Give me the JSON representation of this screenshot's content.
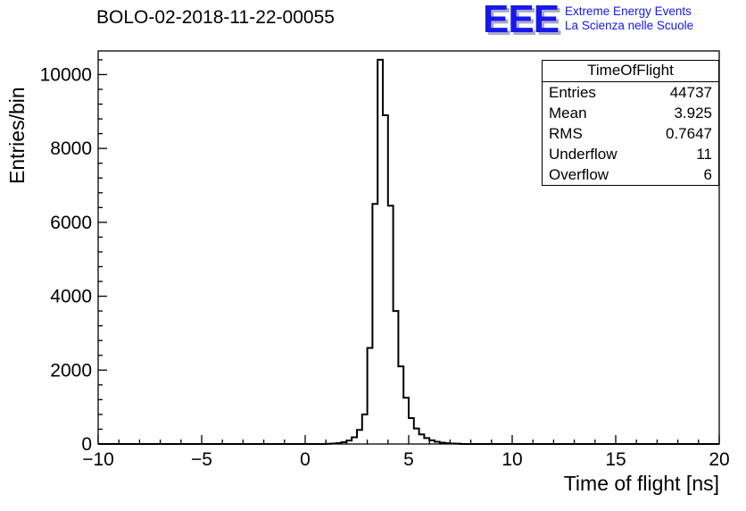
{
  "header": {
    "title": "BOLO-02-2018-11-22-00055"
  },
  "logo": {
    "text": "EEE",
    "line1": "Extreme Energy Events",
    "line2": "La Scienza nelle Scuole",
    "color": "#1717ee"
  },
  "stats": {
    "title": "TimeOfFlight",
    "rows": [
      {
        "label": "Entries",
        "value": "44737"
      },
      {
        "label": "Mean",
        "value": "3.925"
      },
      {
        "label": "RMS",
        "value": "0.7647"
      },
      {
        "label": "Underflow",
        "value": "11"
      },
      {
        "label": "Overflow",
        "value": "6"
      }
    ]
  },
  "chart_data": {
    "type": "bar",
    "style": "step-histogram",
    "title": "BOLO-02-2018-11-22-00055",
    "xlabel": "Time of flight [ns]",
    "ylabel": "Entries/bin",
    "xlim": [
      -10,
      20
    ],
    "ylim": [
      0,
      10640
    ],
    "x_ticks": [
      -10,
      -5,
      0,
      5,
      10,
      15,
      20
    ],
    "y_ticks": [
      0,
      2000,
      4000,
      6000,
      8000,
      10000
    ],
    "x_minor_step": 1,
    "y_minor_step": 400,
    "bin_start": 1.0,
    "bin_width": 0.25,
    "bins": [
      6,
      12,
      25,
      50,
      95,
      180,
      380,
      800,
      2600,
      6500,
      10400,
      8900,
      6450,
      3600,
      2100,
      1250,
      700,
      420,
      260,
      160,
      100,
      60,
      35,
      20,
      12,
      8
    ],
    "line_color": "#000000",
    "grid": false,
    "legend": "none",
    "stats": {
      "name": "TimeOfFlight",
      "entries": 44737,
      "mean": 3.925,
      "rms": 0.7647,
      "underflow": 11,
      "overflow": 6
    }
  }
}
